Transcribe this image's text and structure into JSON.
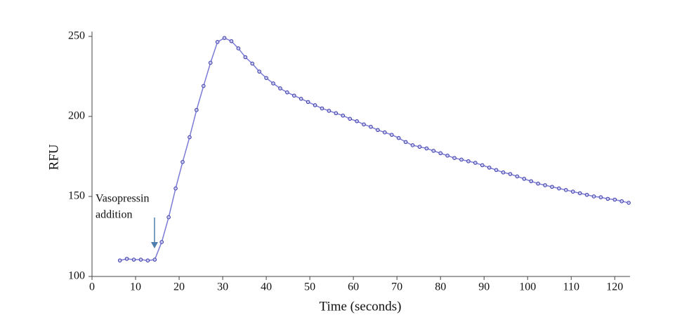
{
  "chart_data": {
    "type": "line",
    "x_label": "Time (seconds)",
    "y_label": "RFU",
    "annotation": [
      "Vasopressin",
      "addition"
    ],
    "xlim": [
      0,
      123.5
    ],
    "ylim": [
      100,
      253
    ],
    "xticks": [
      0,
      10,
      20,
      30,
      40,
      50,
      60,
      70,
      80,
      90,
      100,
      110,
      120
    ],
    "yticks": [
      100,
      150,
      200,
      250
    ],
    "series": [
      {
        "color": "#7b7bd6",
        "marker_color": "#3a3aa8",
        "x": [
          6.4,
          8.0,
          9.6,
          11.2,
          12.8,
          14.4,
          16.0,
          17.6,
          19.2,
          20.8,
          22.4,
          24.0,
          25.6,
          27.2,
          28.8,
          30.4,
          32.0,
          33.6,
          35.2,
          36.8,
          38.4,
          40.0,
          41.6,
          43.2,
          44.8,
          46.4,
          48.0,
          49.6,
          51.2,
          52.8,
          54.4,
          56.0,
          57.6,
          59.2,
          60.8,
          62.4,
          64.0,
          65.6,
          67.2,
          68.8,
          70.4,
          72.0,
          73.6,
          75.2,
          76.8,
          78.4,
          80.0,
          81.6,
          83.2,
          84.8,
          86.4,
          88.0,
          89.6,
          91.2,
          92.8,
          94.4,
          96.0,
          97.6,
          99.2,
          100.8,
          102.4,
          104.0,
          105.6,
          107.2,
          108.8,
          110.4,
          112.0,
          113.6,
          115.2,
          116.8,
          118.4,
          120.0,
          121.6,
          123.2
        ],
        "values": [
          110,
          111,
          110.5,
          110.5,
          110,
          110.5,
          121.5,
          137,
          155,
          171.5,
          187,
          204,
          219,
          233.5,
          246.5,
          249,
          247,
          242.5,
          237,
          233,
          228,
          224,
          220.6,
          217.5,
          215,
          213,
          211,
          209,
          207,
          205,
          203.5,
          202,
          200.5,
          198.5,
          197,
          195,
          193.5,
          191.5,
          190,
          188.5,
          186.5,
          184,
          182,
          181,
          180,
          178.5,
          177,
          175.5,
          174,
          173,
          172,
          171,
          169.5,
          168,
          166.5,
          165,
          164,
          162.5,
          161,
          159.5,
          158,
          157,
          156,
          155,
          154,
          153,
          152,
          151,
          150,
          149.5,
          148.5,
          148,
          147,
          146
        ]
      }
    ]
  }
}
